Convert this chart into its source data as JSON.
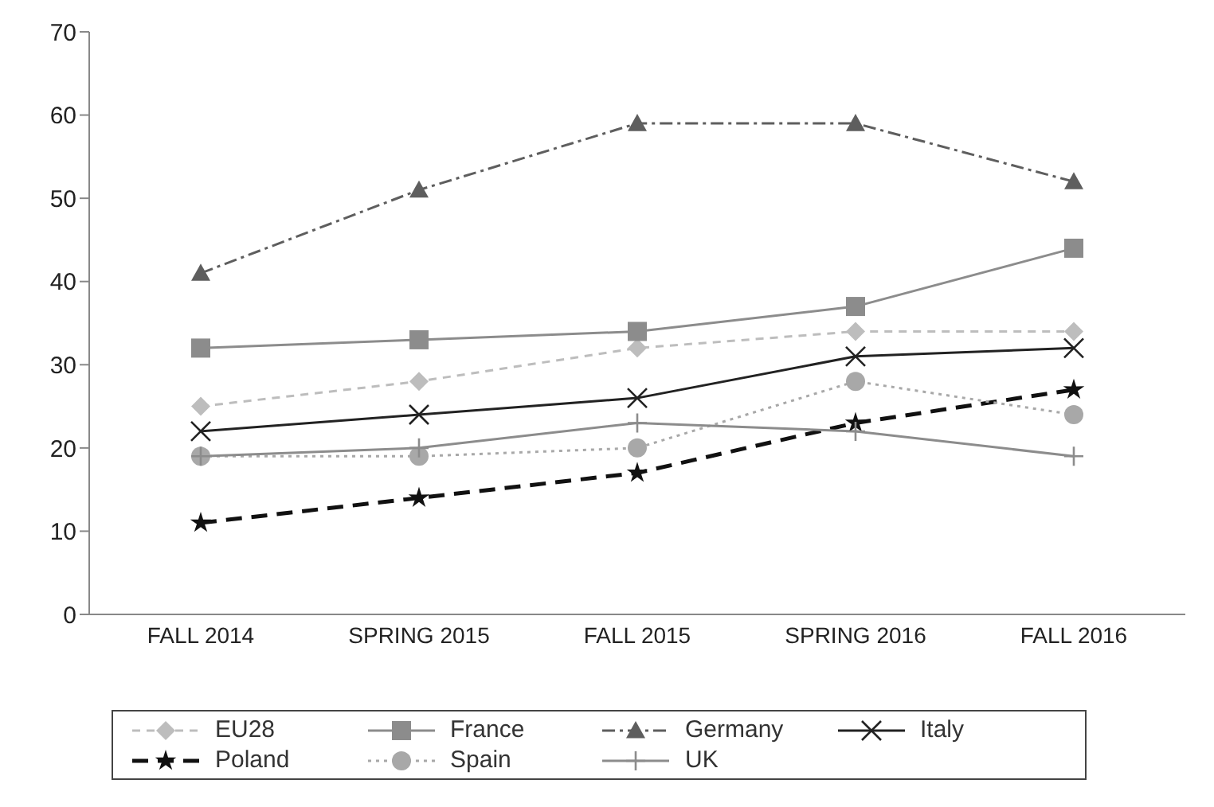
{
  "chart_data": {
    "type": "line",
    "categories": [
      "FALL 2014",
      "SPRING 2015",
      "FALL 2015",
      "SPRING 2016",
      "FALL 2016"
    ],
    "series": [
      {
        "name": "EU28",
        "color": "#bdbdbd",
        "marker": "diamond",
        "line_style": "dashed",
        "values": [
          25,
          28,
          32,
          34,
          34
        ]
      },
      {
        "name": "France",
        "color": "#8c8c8c",
        "marker": "square",
        "line_style": "solid",
        "values": [
          32,
          33,
          34,
          37,
          44
        ]
      },
      {
        "name": "Germany",
        "color": "#5e5e5e",
        "marker": "triangle",
        "line_style": "dashdot",
        "values": [
          41,
          51,
          59,
          59,
          52
        ]
      },
      {
        "name": "Italy",
        "color": "#222222",
        "marker": "cross",
        "line_style": "solid",
        "values": [
          22,
          24,
          26,
          31,
          32
        ]
      },
      {
        "name": "Poland",
        "color": "#111111",
        "marker": "star",
        "line_style": "dashed",
        "values": [
          11,
          14,
          17,
          23,
          27
        ]
      },
      {
        "name": "Spain",
        "color": "#a8a8a8",
        "marker": "circle",
        "line_style": "dotted",
        "values": [
          19,
          19,
          20,
          28,
          24
        ]
      },
      {
        "name": "UK",
        "color": "#8c8c8c",
        "marker": "plus",
        "line_style": "solid",
        "values": [
          19,
          20,
          23,
          22,
          19
        ]
      }
    ],
    "ylim": [
      0,
      70
    ],
    "yticks": [
      0,
      10,
      20,
      30,
      40,
      50,
      60,
      70
    ],
    "grid": false,
    "legend": "bottom"
  }
}
